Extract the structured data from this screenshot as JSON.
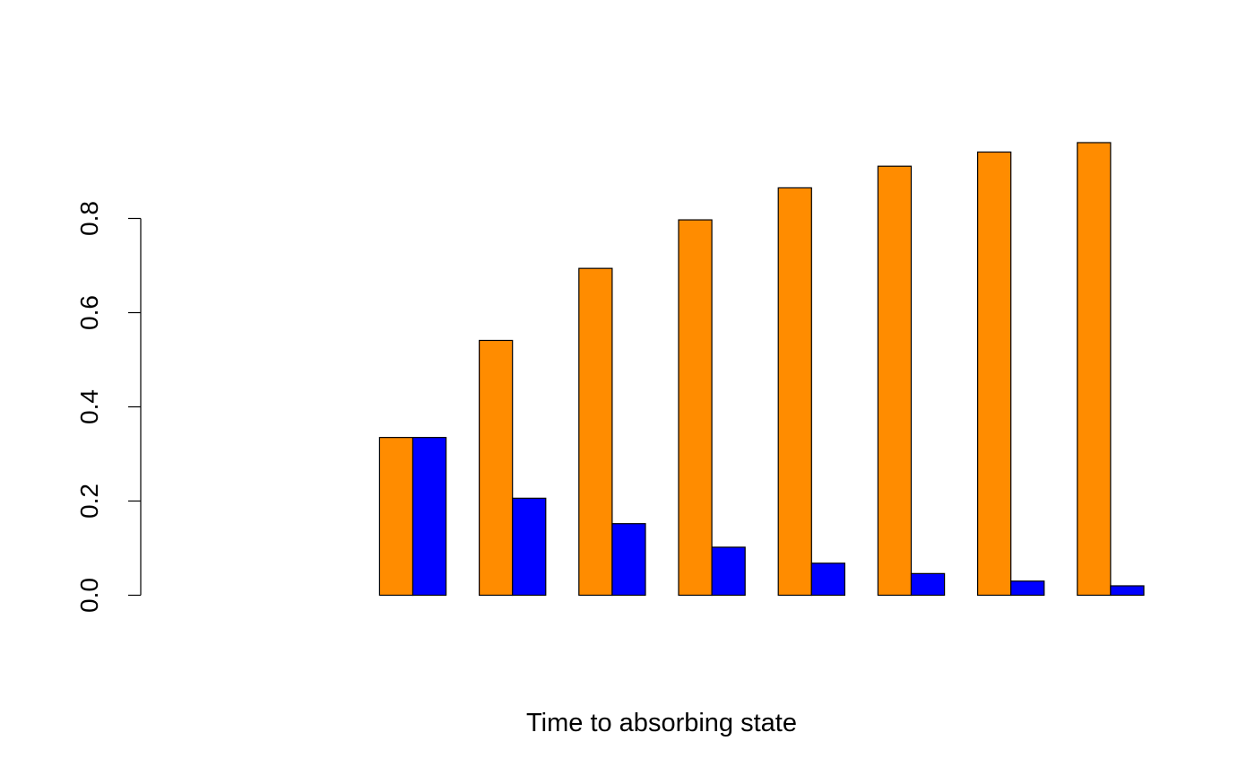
{
  "chart_data": {
    "type": "bar",
    "title": "",
    "xlabel": "Time to absorbing state",
    "ylabel": "",
    "ylim": [
      0,
      1
    ],
    "y_ticks": [
      0.0,
      0.2,
      0.4,
      0.6,
      0.8
    ],
    "y_tick_labels": [
      "0.0",
      "0.2",
      "0.4",
      "0.6",
      "0.8"
    ],
    "grid": false,
    "legend": "none",
    "series": [
      {
        "color": "#FF8C00",
        "values": [
          0.0,
          0.0,
          0.335,
          0.541,
          0.694,
          0.797,
          0.865,
          0.911,
          0.941,
          0.961
        ]
      },
      {
        "color": "#0000FF",
        "values": [
          0.0,
          0.0,
          0.335,
          0.206,
          0.152,
          0.102,
          0.068,
          0.046,
          0.03,
          0.02
        ]
      }
    ]
  }
}
